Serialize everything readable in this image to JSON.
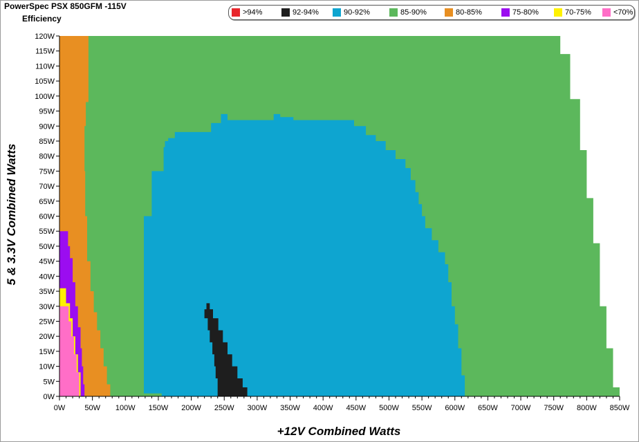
{
  "chart_data": {
    "type": "heatmap",
    "title": "PowerSpec PSX 850GFM -115V",
    "subtitle": "Efficiency",
    "xlabel": "+12V Combined Watts",
    "ylabel": "5 & 3.3V Combined Watts",
    "xlim": [
      0,
      850
    ],
    "ylim": [
      0,
      120
    ],
    "x_ticks": [
      "0W",
      "50W",
      "100W",
      "150W",
      "200W",
      "250W",
      "300W",
      "350W",
      "400W",
      "450W",
      "500W",
      "550W",
      "600W",
      "650W",
      "700W",
      "750W",
      "800W",
      "850W"
    ],
    "y_ticks": [
      "0W",
      "5W",
      "10W",
      "15W",
      "20W",
      "25W",
      "30W",
      "35W",
      "40W",
      "45W",
      "50W",
      "55W",
      "60W",
      "65W",
      "70W",
      "75W",
      "80W",
      "85W",
      "90W",
      "95W",
      "100W",
      "105W",
      "110W",
      "115W",
      "120W"
    ],
    "legend": [
      {
        "label": ">94%",
        "color": "#e8262c"
      },
      {
        "label": "92-94%",
        "color": "#1e1e1e"
      },
      {
        "label": "90-92%",
        "color": "#0ea5d0"
      },
      {
        "label": "85-90%",
        "color": "#5cb85c"
      },
      {
        "label": "80-85%",
        "color": "#e88f22"
      },
      {
        "label": "75-80%",
        "color": "#9b0df0"
      },
      {
        "label": "70-75%",
        "color": "#fff200"
      },
      {
        "label": "<70%",
        "color": "#ff6ec7"
      }
    ],
    "regions": [
      {
        "band": "85-90%",
        "color": "#5cb85c",
        "points": [
          [
            0,
            0
          ],
          [
            850,
            0
          ],
          [
            850,
            3
          ],
          [
            840,
            3
          ],
          [
            840,
            16
          ],
          [
            830,
            16
          ],
          [
            830,
            30
          ],
          [
            820,
            30
          ],
          [
            820,
            51
          ],
          [
            810,
            51
          ],
          [
            810,
            66
          ],
          [
            800,
            66
          ],
          [
            800,
            82
          ],
          [
            790,
            82
          ],
          [
            790,
            99
          ],
          [
            775,
            99
          ],
          [
            775,
            114
          ],
          [
            760,
            114
          ],
          [
            760,
            120
          ],
          [
            0,
            120
          ]
        ]
      },
      {
        "band": "80-85%",
        "color": "#e88f22",
        "points": [
          [
            0,
            0
          ],
          [
            77,
            0
          ],
          [
            77,
            4
          ],
          [
            72,
            4
          ],
          [
            72,
            10
          ],
          [
            67,
            10
          ],
          [
            67,
            16
          ],
          [
            62,
            16
          ],
          [
            62,
            22
          ],
          [
            57,
            22
          ],
          [
            57,
            28
          ],
          [
            52,
            28
          ],
          [
            52,
            35
          ],
          [
            47,
            35
          ],
          [
            47,
            45
          ],
          [
            42,
            45
          ],
          [
            42,
            60
          ],
          [
            39,
            60
          ],
          [
            39,
            75
          ],
          [
            38,
            75
          ],
          [
            38,
            90
          ],
          [
            40,
            90
          ],
          [
            40,
            98
          ],
          [
            44,
            98
          ],
          [
            44,
            120
          ],
          [
            0,
            120
          ]
        ]
      },
      {
        "band": "75-80%",
        "color": "#9b0df0",
        "points": [
          [
            0,
            0
          ],
          [
            38,
            0
          ],
          [
            38,
            4
          ],
          [
            36,
            4
          ],
          [
            36,
            10
          ],
          [
            34,
            10
          ],
          [
            34,
            16
          ],
          [
            32,
            16
          ],
          [
            32,
            23
          ],
          [
            28,
            23
          ],
          [
            28,
            30
          ],
          [
            24,
            30
          ],
          [
            24,
            38
          ],
          [
            20,
            38
          ],
          [
            20,
            46
          ],
          [
            16,
            46
          ],
          [
            16,
            50
          ],
          [
            13,
            50
          ],
          [
            13,
            55
          ],
          [
            0,
            55
          ]
        ]
      },
      {
        "band": "70-75%",
        "color": "#fff200",
        "points": [
          [
            0,
            0
          ],
          [
            32,
            0
          ],
          [
            32,
            8
          ],
          [
            28,
            8
          ],
          [
            28,
            14
          ],
          [
            24,
            14
          ],
          [
            24,
            20
          ],
          [
            20,
            20
          ],
          [
            20,
            26
          ],
          [
            16,
            26
          ],
          [
            16,
            31
          ],
          [
            10,
            31
          ],
          [
            10,
            36
          ],
          [
            0,
            36
          ]
        ]
      },
      {
        "band": "<70%",
        "color": "#ff6ec7",
        "points": [
          [
            0,
            0
          ],
          [
            30,
            0
          ],
          [
            30,
            8
          ],
          [
            26,
            8
          ],
          [
            26,
            14
          ],
          [
            22,
            14
          ],
          [
            22,
            20
          ],
          [
            18,
            20
          ],
          [
            18,
            25
          ],
          [
            14,
            25
          ],
          [
            14,
            30
          ],
          [
            0,
            30
          ]
        ]
      },
      {
        "band": "90-92%",
        "color": "#0ea5d0",
        "points": [
          [
            155,
            0
          ],
          [
            615,
            0
          ],
          [
            615,
            7
          ],
          [
            610,
            7
          ],
          [
            610,
            16
          ],
          [
            605,
            16
          ],
          [
            605,
            24
          ],
          [
            600,
            24
          ],
          [
            600,
            30
          ],
          [
            595,
            30
          ],
          [
            595,
            38
          ],
          [
            590,
            38
          ],
          [
            590,
            44
          ],
          [
            585,
            44
          ],
          [
            585,
            48
          ],
          [
            575,
            48
          ],
          [
            575,
            52
          ],
          [
            565,
            52
          ],
          [
            565,
            56
          ],
          [
            555,
            56
          ],
          [
            555,
            60
          ],
          [
            550,
            60
          ],
          [
            550,
            64
          ],
          [
            545,
            64
          ],
          [
            545,
            68
          ],
          [
            540,
            68
          ],
          [
            540,
            72
          ],
          [
            533,
            72
          ],
          [
            533,
            76
          ],
          [
            525,
            76
          ],
          [
            525,
            79
          ],
          [
            510,
            79
          ],
          [
            510,
            82
          ],
          [
            495,
            82
          ],
          [
            495,
            85
          ],
          [
            480,
            85
          ],
          [
            480,
            87
          ],
          [
            465,
            87
          ],
          [
            465,
            90
          ],
          [
            447,
            90
          ],
          [
            447,
            92
          ],
          [
            435,
            92
          ],
          [
            435,
            92
          ],
          [
            355,
            92
          ],
          [
            355,
            93
          ],
          [
            335,
            93
          ],
          [
            335,
            94
          ],
          [
            325,
            94
          ],
          [
            325,
            92
          ],
          [
            255,
            92
          ],
          [
            255,
            94
          ],
          [
            245,
            94
          ],
          [
            245,
            91
          ],
          [
            230,
            91
          ],
          [
            230,
            88
          ],
          [
            175,
            88
          ],
          [
            175,
            86
          ],
          [
            165,
            86
          ],
          [
            165,
            85
          ],
          [
            160,
            85
          ],
          [
            160,
            83
          ],
          [
            158,
            83
          ],
          [
            158,
            75
          ],
          [
            140,
            75
          ],
          [
            140,
            60
          ],
          [
            128,
            60
          ],
          [
            128,
            1
          ],
          [
            155,
            1
          ]
        ]
      },
      {
        "band": "92-94%",
        "color": "#1e1e1e",
        "points": [
          [
            240,
            0
          ],
          [
            285,
            0
          ],
          [
            285,
            3
          ],
          [
            278,
            3
          ],
          [
            278,
            6
          ],
          [
            270,
            6
          ],
          [
            270,
            10
          ],
          [
            262,
            10
          ],
          [
            262,
            14
          ],
          [
            255,
            14
          ],
          [
            255,
            18
          ],
          [
            248,
            18
          ],
          [
            248,
            22
          ],
          [
            241,
            22
          ],
          [
            241,
            26
          ],
          [
            233,
            26
          ],
          [
            233,
            29
          ],
          [
            228,
            29
          ],
          [
            228,
            31
          ],
          [
            223,
            31
          ],
          [
            223,
            29
          ],
          [
            220,
            29
          ],
          [
            220,
            26
          ],
          [
            225,
            26
          ],
          [
            225,
            22
          ],
          [
            228,
            22
          ],
          [
            228,
            18
          ],
          [
            232,
            18
          ],
          [
            232,
            14
          ],
          [
            235,
            14
          ],
          [
            235,
            10
          ],
          [
            237,
            10
          ],
          [
            237,
            6
          ],
          [
            240,
            6
          ]
        ]
      }
    ]
  }
}
